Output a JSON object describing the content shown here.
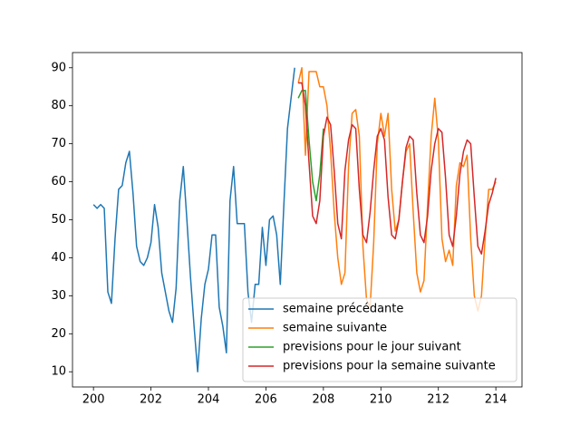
{
  "chart_data": {
    "type": "line",
    "xlim": [
      199.27,
      214.91
    ],
    "ylim": [
      6,
      94
    ],
    "xticks": [
      200,
      202,
      204,
      206,
      208,
      210,
      212,
      214
    ],
    "yticks": [
      10,
      20,
      30,
      40,
      50,
      60,
      70,
      80,
      90
    ],
    "legend": "lower right",
    "series": [
      {
        "name": "semaine précédante",
        "color": "#1f77b4",
        "x": [
          200,
          200.125,
          200.25,
          200.375,
          200.5,
          200.625,
          200.75,
          200.875,
          201,
          201.125,
          201.25,
          201.375,
          201.5,
          201.625,
          201.75,
          201.875,
          202,
          202.125,
          202.25,
          202.375,
          202.5,
          202.625,
          202.75,
          202.875,
          203,
          203.125,
          203.25,
          203.375,
          203.5,
          203.625,
          203.75,
          203.875,
          204,
          204.125,
          204.25,
          204.375,
          204.5,
          204.625,
          204.75,
          204.875,
          205,
          205.125,
          205.25,
          205.375,
          205.5,
          205.625,
          205.75,
          205.875,
          206,
          206.125,
          206.25,
          206.375,
          206.5,
          206.625,
          206.75,
          206.875,
          207
        ],
        "values": [
          54,
          53,
          54,
          53,
          31,
          28,
          45,
          58,
          59,
          65,
          68,
          57,
          43,
          39,
          38,
          40,
          44,
          54,
          48,
          36,
          31,
          26,
          23,
          32,
          55,
          64,
          50,
          35,
          22,
          10,
          24,
          33,
          37,
          46,
          46,
          27,
          22,
          15,
          55,
          64,
          49,
          49,
          49,
          31,
          23,
          33,
          33,
          48,
          38,
          50,
          51,
          46,
          33,
          54,
          74,
          82,
          90
        ]
      },
      {
        "name": "semaine suivante",
        "color": "#ff7f0e",
        "x": [
          207.125,
          207.25,
          207.375,
          207.5,
          207.625,
          207.75,
          207.875,
          208,
          208.125,
          208.25,
          208.375,
          208.5,
          208.625,
          208.75,
          208.875,
          209,
          209.125,
          209.25,
          209.375,
          209.5,
          209.625,
          209.75,
          209.875,
          210,
          210.125,
          210.25,
          210.375,
          210.5,
          210.625,
          210.75,
          210.875,
          211,
          211.125,
          211.25,
          211.375,
          211.5,
          211.625,
          211.75,
          211.875,
          212,
          212.125,
          212.25,
          212.375,
          212.5,
          212.625,
          212.75,
          212.875,
          213,
          213.125,
          213.25,
          213.375,
          213.5,
          213.625,
          213.75,
          213.875,
          214
        ],
        "values": [
          86,
          90,
          67,
          89,
          89,
          89,
          85,
          85,
          80,
          68,
          52,
          40,
          33,
          36,
          64,
          78,
          79,
          72,
          43,
          29,
          27,
          44,
          70,
          78,
          72,
          78,
          58,
          47,
          50,
          60,
          68,
          70,
          52,
          36,
          31,
          34,
          54,
          72,
          82,
          71,
          45,
          39,
          42,
          38,
          59,
          65,
          64,
          67,
          45,
          30,
          26,
          30,
          45,
          58,
          58,
          60
        ]
      },
      {
        "name": "previsions pour le jour suivant",
        "color": "#2ca02c",
        "x": [
          207.125,
          207.25,
          207.375,
          207.5,
          207.625,
          207.75,
          207.875,
          208
        ],
        "values": [
          82,
          84,
          84,
          71,
          60,
          55,
          62,
          74
        ]
      },
      {
        "name": "previsions pour la semaine suivante",
        "color": "#d62728",
        "x": [
          207.125,
          207.25,
          207.375,
          207.5,
          207.625,
          207.75,
          207.875,
          208,
          208.125,
          208.25,
          208.375,
          208.5,
          208.625,
          208.75,
          208.875,
          209,
          209.125,
          209.25,
          209.375,
          209.5,
          209.625,
          209.75,
          209.875,
          210,
          210.125,
          210.25,
          210.375,
          210.5,
          210.625,
          210.75,
          210.875,
          211,
          211.125,
          211.25,
          211.375,
          211.5,
          211.625,
          211.75,
          211.875,
          212,
          212.125,
          212.25,
          212.375,
          212.5,
          212.625,
          212.75,
          212.875,
          213,
          213.125,
          213.25,
          213.375,
          213.5,
          213.625,
          213.75,
          213.875,
          214
        ],
        "values": [
          86,
          86,
          80,
          65,
          51,
          49,
          55,
          72,
          77,
          75,
          63,
          49,
          45,
          63,
          71,
          75,
          74,
          58,
          46,
          44,
          52,
          63,
          72,
          74,
          71,
          56,
          46,
          45,
          50,
          60,
          69,
          72,
          71,
          57,
          46,
          44,
          51,
          63,
          70,
          74,
          73,
          61,
          46,
          43,
          51,
          62,
          68,
          71,
          70,
          56,
          43,
          41,
          47,
          54,
          57,
          61
        ]
      }
    ]
  }
}
